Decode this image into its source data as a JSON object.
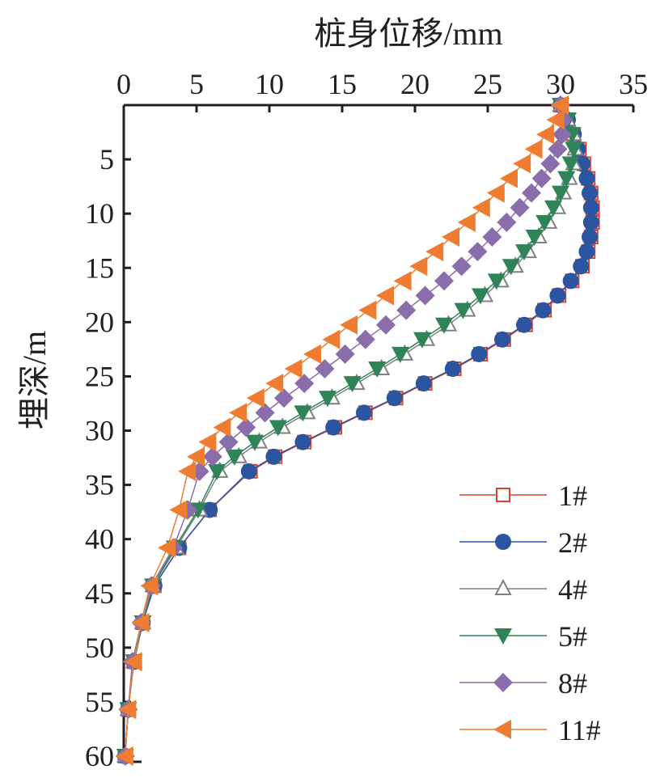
{
  "chart_data": {
    "type": "line",
    "title": "",
    "xlabel": "桩身位移/mm",
    "ylabel": "埋深/m",
    "xlim": [
      0,
      35
    ],
    "ylim": [
      0,
      60
    ],
    "x_axis_position": "top",
    "y_axis_inverted": true,
    "xticks": [
      0,
      5,
      10,
      15,
      20,
      25,
      30,
      35
    ],
    "yticks": [
      5,
      10,
      15,
      20,
      25,
      30,
      35,
      40,
      45,
      50,
      55,
      60
    ],
    "grid": false,
    "legend_position": "bottom-right",
    "depth": [
      0,
      1.35,
      2.7,
      4.05,
      5.4,
      6.75,
      8.1,
      9.45,
      10.8,
      12.15,
      13.5,
      14.85,
      16.2,
      17.55,
      18.9,
      20.25,
      21.6,
      22.95,
      24.3,
      25.65,
      27,
      28.35,
      29.7,
      31.05,
      32.4,
      33.75,
      37.3,
      40.8,
      44.3,
      47.7,
      51.3,
      55.7,
      60
    ],
    "series": [
      {
        "name": "1#",
        "color": "#d9452b",
        "marker": "square-open",
        "values": [
          30,
          30.5,
          30.9,
          31.3,
          31.6,
          31.9,
          32.1,
          32.2,
          32.2,
          32.1,
          31.9,
          31.5,
          30.8,
          29.9,
          28.9,
          27.6,
          26.1,
          24.5,
          22.7,
          20.7,
          18.7,
          16.6,
          14.5,
          12.4,
          10.4,
          8.7,
          5.9,
          3.8,
          2.1,
          1.3,
          0.7,
          0.3,
          0.1
        ]
      },
      {
        "name": "2#",
        "color": "#2b55a0",
        "marker": "circle",
        "values": [
          30,
          30.5,
          30.9,
          31.2,
          31.5,
          31.8,
          32.0,
          32.1,
          32.1,
          32.0,
          31.8,
          31.4,
          30.7,
          29.8,
          28.8,
          27.5,
          26.0,
          24.4,
          22.6,
          20.6,
          18.6,
          16.5,
          14.4,
          12.3,
          10.3,
          8.6,
          5.9,
          3.8,
          2.1,
          1.3,
          0.7,
          0.3,
          0.1
        ]
      },
      {
        "name": "4#",
        "color": "#808080",
        "marker": "triangle-up-open",
        "values": [
          30,
          30.5,
          30.9,
          31.0,
          30.9,
          30.6,
          30.2,
          29.8,
          29.2,
          28.5,
          27.8,
          26.9,
          25.9,
          24.8,
          23.6,
          22.3,
          20.8,
          19.3,
          17.7,
          16.0,
          14.3,
          12.6,
          10.9,
          9.3,
          7.9,
          6.6,
          5.2,
          3.6,
          2.0,
          1.3,
          0.7,
          0.3,
          0.1
        ]
      },
      {
        "name": "5#",
        "color": "#2e8456",
        "marker": "triangle-down",
        "values": [
          30,
          30.5,
          30.8,
          30.9,
          30.7,
          30.4,
          30.0,
          29.5,
          28.9,
          28.2,
          27.5,
          26.6,
          25.6,
          24.5,
          23.3,
          22.0,
          20.5,
          19.0,
          17.4,
          15.7,
          14.0,
          12.3,
          10.6,
          9.0,
          7.6,
          6.4,
          5.1,
          3.5,
          2.0,
          1.3,
          0.7,
          0.3,
          0.1
        ]
      },
      {
        "name": "8#",
        "color": "#8a6dab",
        "marker": "diamond",
        "values": [
          30,
          30.2,
          30.1,
          29.8,
          29.3,
          28.7,
          28.0,
          27.2,
          26.3,
          25.3,
          24.3,
          23.2,
          22.0,
          20.7,
          19.4,
          18.0,
          16.6,
          15.2,
          13.8,
          12.4,
          11.0,
          9.7,
          8.4,
          7.2,
          6.1,
          5.2,
          4.4,
          3.4,
          1.9,
          1.2,
          0.6,
          0.3,
          0.1
        ]
      },
      {
        "name": "11#",
        "color": "#ef7d31",
        "marker": "triangle-left",
        "values": [
          30,
          29.7,
          29.0,
          28.2,
          27.4,
          26.5,
          25.6,
          24.6,
          23.6,
          22.5,
          21.4,
          20.3,
          19.2,
          18.0,
          16.8,
          15.5,
          14.3,
          13.0,
          11.7,
          10.4,
          9.1,
          7.9,
          6.8,
          5.8,
          5.0,
          4.4,
          3.8,
          3.0,
          1.8,
          1.2,
          0.7,
          0.3,
          0.1
        ]
      }
    ]
  }
}
